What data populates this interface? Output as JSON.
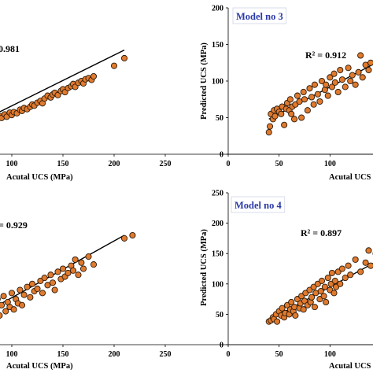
{
  "chart_data": [
    {
      "type": "scatter",
      "title": "",
      "model_label": "",
      "r2_label": "0.981",
      "xlabel": "Acutal UCS (MPa)",
      "ylabel": "",
      "xlim": [
        50,
        250
      ],
      "ylim": [
        50,
        300
      ],
      "x_ticks": [
        "100",
        "150",
        "200",
        "250"
      ],
      "y_ticks": [],
      "fit": [
        [
          60,
          98
        ],
        [
          210,
          228
        ]
      ],
      "x": [
        60,
        63,
        65,
        67,
        70,
        72,
        75,
        78,
        80,
        82,
        85,
        88,
        90,
        93,
        95,
        98,
        100,
        102,
        105,
        108,
        110,
        112,
        115,
        118,
        120,
        122,
        125,
        128,
        130,
        132,
        135,
        138,
        140,
        142,
        145,
        148,
        150,
        152,
        155,
        158,
        160,
        162,
        165,
        168,
        170,
        172,
        175,
        178,
        180,
        200,
        210
      ],
      "y": [
        100,
        98,
        104,
        102,
        106,
        101,
        110,
        108,
        107,
        113,
        109,
        115,
        112,
        118,
        114,
        121,
        117,
        122,
        120,
        126,
        124,
        129,
        127,
        131,
        135,
        133,
        138,
        141,
        137,
        145,
        150,
        147,
        152,
        155,
        151,
        158,
        161,
        156,
        163,
        166,
        170,
        165,
        172,
        175,
        171,
        178,
        180,
        177,
        183,
        201,
        214
      ]
    },
    {
      "type": "scatter",
      "title": "Model no 3",
      "model_label": "Model no 3",
      "r2_label": "R² = 0.912",
      "xlabel": "Acutal UCS",
      "ylabel": "Predicted UCS (MPa)",
      "xlim": [
        0,
        150
      ],
      "ylim": [
        0,
        200
      ],
      "x_ticks": [
        "0",
        "50",
        "100"
      ],
      "y_ticks": [
        "0",
        "50",
        "100",
        "150",
        "200"
      ],
      "fit": [
        [
          40,
          48
        ],
        [
          155,
          132
        ]
      ],
      "x": [
        40,
        41,
        42,
        44,
        45,
        46,
        48,
        50,
        52,
        53,
        55,
        57,
        58,
        60,
        61,
        62,
        63,
        65,
        66,
        68,
        70,
        72,
        74,
        75,
        78,
        80,
        82,
        84,
        85,
        88,
        90,
        92,
        95,
        96,
        98,
        100,
        102,
        104,
        105,
        108,
        110,
        112,
        115,
        118,
        120,
        122,
        125,
        128,
        130,
        132,
        135,
        138,
        140
      ],
      "y": [
        30,
        38,
        55,
        48,
        60,
        52,
        62,
        58,
        55,
        65,
        40,
        62,
        70,
        60,
        75,
        55,
        65,
        48,
        68,
        80,
        72,
        50,
        85,
        75,
        60,
        90,
        78,
        68,
        95,
        82,
        72,
        100,
        88,
        95,
        80,
        105,
        92,
        110,
        98,
        85,
        115,
        102,
        92,
        118,
        100,
        108,
        95,
        112,
        135,
        105,
        122,
        115,
        125
      ]
    },
    {
      "type": "scatter",
      "title": "",
      "model_label": "",
      "r2_label": "= 0.929",
      "xlabel": "Acutal UCS (MPa)",
      "ylabel": "",
      "xlim": [
        50,
        250
      ],
      "ylim": [
        50,
        300
      ],
      "x_ticks": [
        "100",
        "150",
        "200",
        "250"
      ],
      "y_ticks": [],
      "fit": [
        [
          60,
          90
        ],
        [
          210,
          230
        ]
      ],
      "x": [
        60,
        62,
        64,
        66,
        68,
        70,
        72,
        74,
        76,
        78,
        80,
        82,
        84,
        86,
        88,
        90,
        92,
        94,
        96,
        98,
        100,
        102,
        104,
        106,
        108,
        110,
        112,
        115,
        118,
        120,
        122,
        125,
        128,
        130,
        132,
        135,
        138,
        140,
        142,
        145,
        148,
        150,
        152,
        155,
        158,
        160,
        162,
        165,
        168,
        170,
        175,
        180,
        210,
        218
      ],
      "y": [
        85,
        95,
        80,
        100,
        90,
        110,
        88,
        105,
        115,
        92,
        120,
        100,
        110,
        125,
        98,
        115,
        130,
        105,
        120,
        112,
        135,
        108,
        125,
        118,
        140,
        115,
        132,
        145,
        128,
        150,
        138,
        142,
        155,
        135,
        160,
        148,
        165,
        152,
        140,
        170,
        158,
        175,
        162,
        168,
        180,
        172,
        190,
        165,
        185,
        175,
        195,
        182,
        225,
        230
      ]
    },
    {
      "type": "scatter",
      "title": "Model no 4",
      "model_label": "Model no 4",
      "r2_label": "R² = 0.897",
      "xlabel": "Acutal UCS",
      "ylabel": "Predicted UCS (MPa)",
      "xlim": [
        0,
        150
      ],
      "ylim": [
        0,
        250
      ],
      "x_ticks": [
        "0",
        "50",
        "100"
      ],
      "y_ticks": [
        "0",
        "50",
        "100",
        "150",
        "200",
        "250"
      ],
      "fit": [
        [
          40,
          40
        ],
        [
          160,
          150
        ]
      ],
      "x": [
        40,
        42,
        44,
        45,
        47,
        48,
        50,
        52,
        53,
        55,
        56,
        58,
        60,
        61,
        62,
        64,
        65,
        66,
        68,
        70,
        71,
        72,
        74,
        75,
        76,
        78,
        80,
        81,
        82,
        84,
        85,
        86,
        88,
        90,
        91,
        92,
        94,
        95,
        96,
        98,
        100,
        101,
        102,
        104,
        105,
        106,
        108,
        110,
        112,
        115,
        118,
        120,
        125,
        130,
        135,
        138,
        140,
        145
      ],
      "y": [
        38,
        40,
        45,
        42,
        50,
        38,
        55,
        48,
        60,
        45,
        52,
        65,
        50,
        58,
        70,
        55,
        62,
        48,
        75,
        60,
        68,
        80,
        58,
        72,
        85,
        65,
        90,
        70,
        78,
        95,
        62,
        85,
        100,
        75,
        88,
        105,
        80,
        95,
        70,
        110,
        90,
        100,
        118,
        85,
        105,
        95,
        120,
        100,
        125,
        110,
        130,
        115,
        140,
        120,
        135,
        155,
        130,
        150
      ]
    }
  ]
}
